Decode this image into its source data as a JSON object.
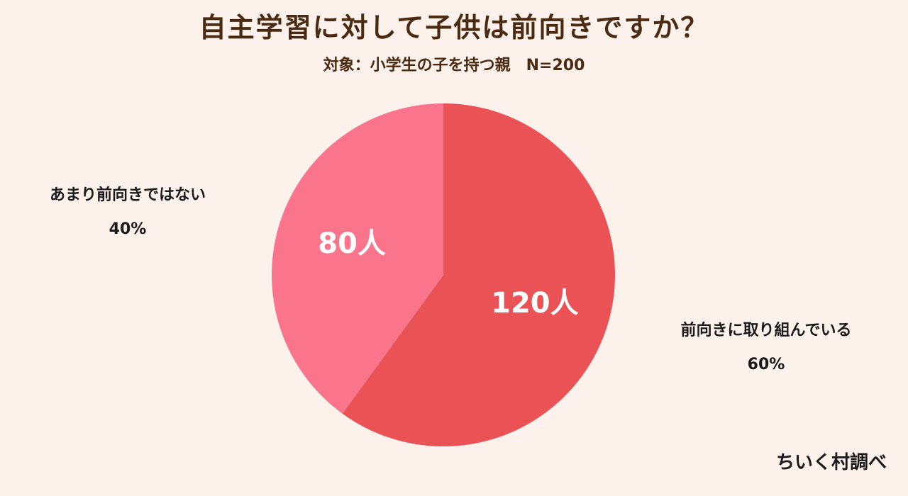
{
  "title": "自主学習に対して子供は前向きですか？",
  "subtitle": "対象：小学生の子を持つ親　N=200",
  "credit": "ちいく村調べ",
  "chart_data": {
    "type": "pie",
    "title": "自主学習に対して子供は前向きですか？",
    "subtitle": "対象：小学生の子を持つ親　N=200",
    "total_n": 200,
    "start_angle_deg": 0,
    "direction": "clockwise",
    "slices": [
      {
        "label": "前向きに取り組んでいる",
        "value": 120,
        "value_label": "120人",
        "percent": 60,
        "percent_label": "60%",
        "color": "#eb5255"
      },
      {
        "label": "あまり前向きではない",
        "value": 80,
        "value_label": "80人",
        "percent": 40,
        "percent_label": "40%",
        "color": "#fa748c"
      }
    ]
  }
}
